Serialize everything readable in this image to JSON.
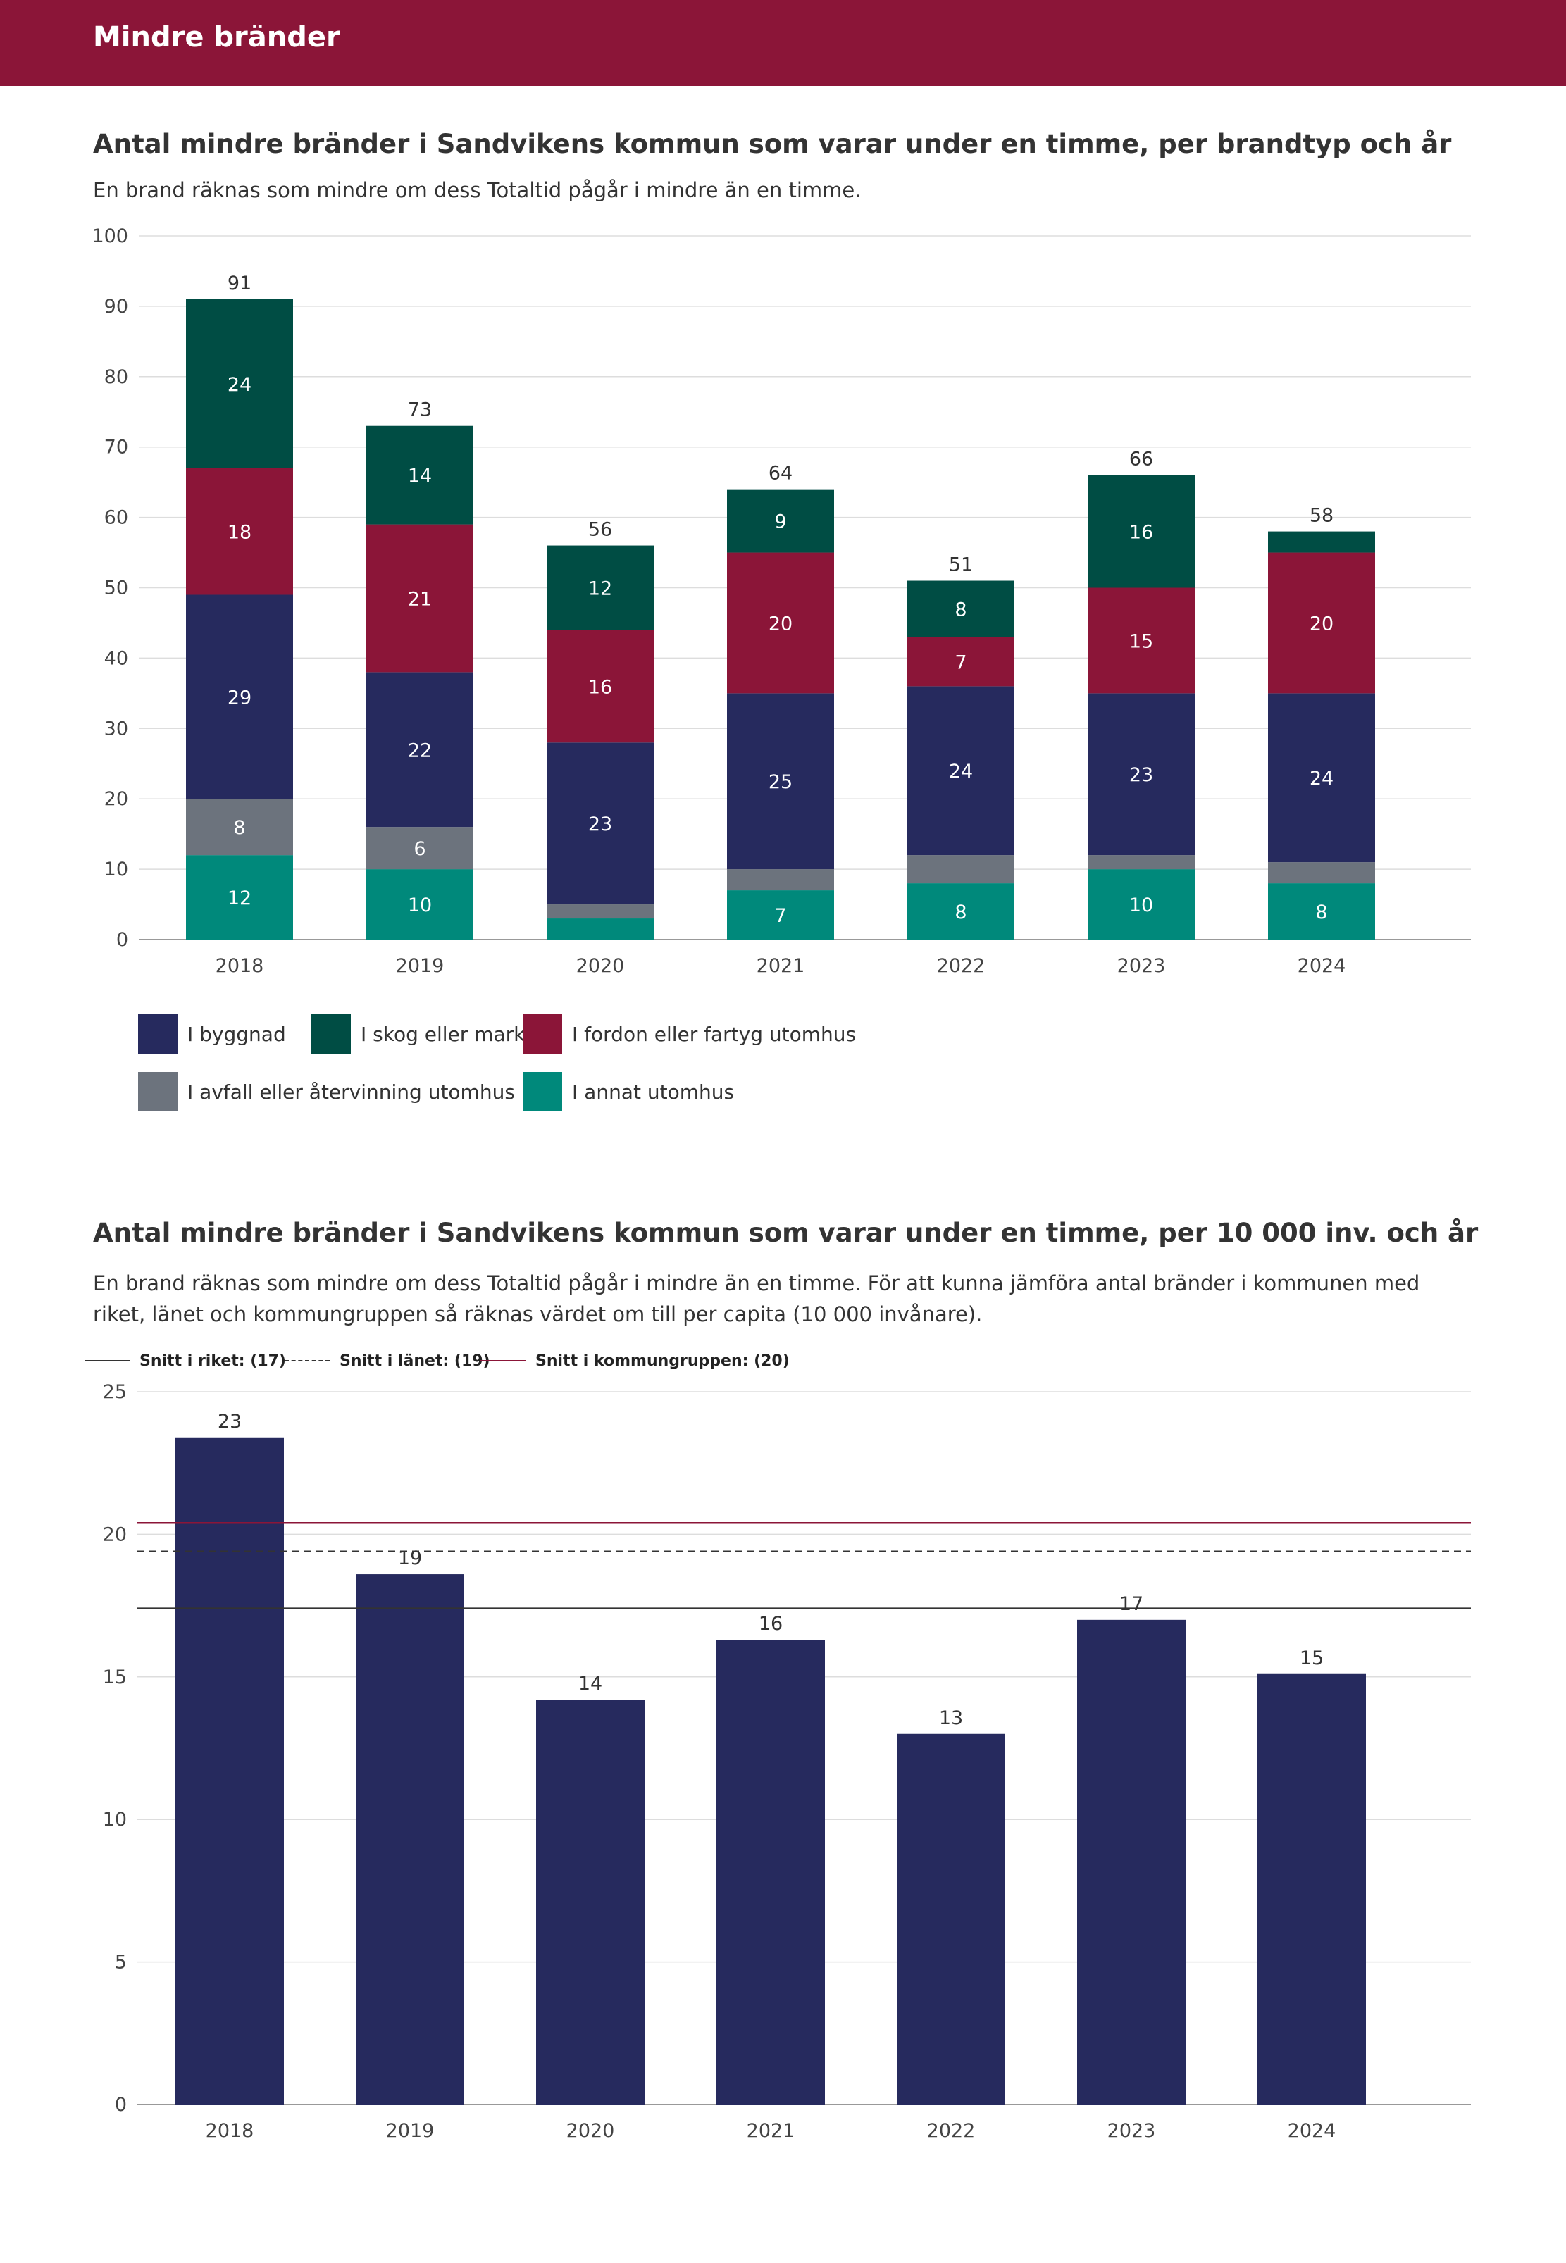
{
  "header": {
    "title": "Mindre bränder",
    "color": "#8b1538"
  },
  "chart_data": [
    {
      "type": "bar",
      "stacked": true,
      "title": "Antal mindre bränder i Sandvikens kommun som varar under en timme, per brandtyp och år",
      "subtitle": "En brand räknas som mindre om dess Totaltid pågår i mindre än en timme.",
      "categories": [
        "2018",
        "2019",
        "2020",
        "2021",
        "2022",
        "2023",
        "2024"
      ],
      "ylim": [
        0,
        100
      ],
      "yticks": [
        0,
        10,
        20,
        30,
        40,
        50,
        60,
        70,
        80,
        90,
        100
      ],
      "grid": true,
      "legend_position": "bottom",
      "totals": [
        91,
        73,
        56,
        64,
        51,
        66,
        58
      ],
      "series": [
        {
          "name": "I annat utomhus",
          "color": "#00897b",
          "values": [
            12,
            10,
            3,
            7,
            8,
            10,
            8
          ],
          "labels": [
            "12",
            "10",
            "",
            "7",
            "8",
            "10",
            "8"
          ]
        },
        {
          "name": "I avfall eller återvinning utomhus",
          "color": "#6c737d",
          "values": [
            8,
            6,
            2,
            3,
            4,
            2,
            3
          ],
          "labels": [
            "8",
            "6",
            "",
            "",
            "",
            "",
            ""
          ]
        },
        {
          "name": "I byggnad",
          "color": "#262a5e",
          "values": [
            29,
            22,
            23,
            25,
            24,
            23,
            24
          ],
          "labels": [
            "29",
            "22",
            "23",
            "25",
            "24",
            "23",
            "24"
          ]
        },
        {
          "name": "I fordon eller fartyg utomhus",
          "color": "#8b1538",
          "values": [
            18,
            21,
            16,
            20,
            7,
            15,
            20
          ],
          "labels": [
            "18",
            "21",
            "16",
            "20",
            "7",
            "15",
            "20"
          ]
        },
        {
          "name": "I skog eller mark",
          "color": "#004d44",
          "values": [
            24,
            14,
            12,
            9,
            8,
            16,
            3
          ],
          "labels": [
            "24",
            "14",
            "12",
            "9",
            "8",
            "16",
            ""
          ]
        }
      ],
      "legend_order": [
        {
          "name": "I byggnad",
          "color": "#262a5e"
        },
        {
          "name": "I skog eller mark",
          "color": "#004d44"
        },
        {
          "name": "I fordon eller fartyg utomhus",
          "color": "#8b1538"
        },
        {
          "name": "I avfall eller återvinning utomhus",
          "color": "#6c737d"
        },
        {
          "name": "I annat utomhus",
          "color": "#00897b"
        }
      ]
    },
    {
      "type": "bar",
      "title": "Antal mindre bränder i Sandvikens kommun som varar under en timme, per 10 000 inv. och år",
      "subtitle": "En brand räknas som mindre om dess Totaltid pågår i mindre än en timme. För att kunna jämföra antal bränder i kommunen med riket, länet och kommungruppen så räknas värdet om till per capita (10 000 invånare).",
      "categories": [
        "2018",
        "2019",
        "2020",
        "2021",
        "2022",
        "2023",
        "2024"
      ],
      "values": [
        23.4,
        18.6,
        14.2,
        16.3,
        13.0,
        17.0,
        15.1
      ],
      "value_labels": [
        "23",
        "19",
        "14",
        "16",
        "13",
        "17",
        "15"
      ],
      "ylim": [
        0,
        25
      ],
      "yticks": [
        0,
        5,
        10,
        15,
        20,
        25
      ],
      "grid": true,
      "bar_color": "#262a5e",
      "reference_lines": [
        {
          "label": "Snitt i riket: (17)",
          "value": 17.4,
          "style": "solid",
          "color": "#333333"
        },
        {
          "label": "Snitt i länet: (19)",
          "value": 19.4,
          "style": "dashed",
          "color": "#333333"
        },
        {
          "label": "Snitt i kommungruppen: (20)",
          "value": 20.4,
          "style": "solid",
          "color": "#8b1538"
        }
      ]
    }
  ]
}
